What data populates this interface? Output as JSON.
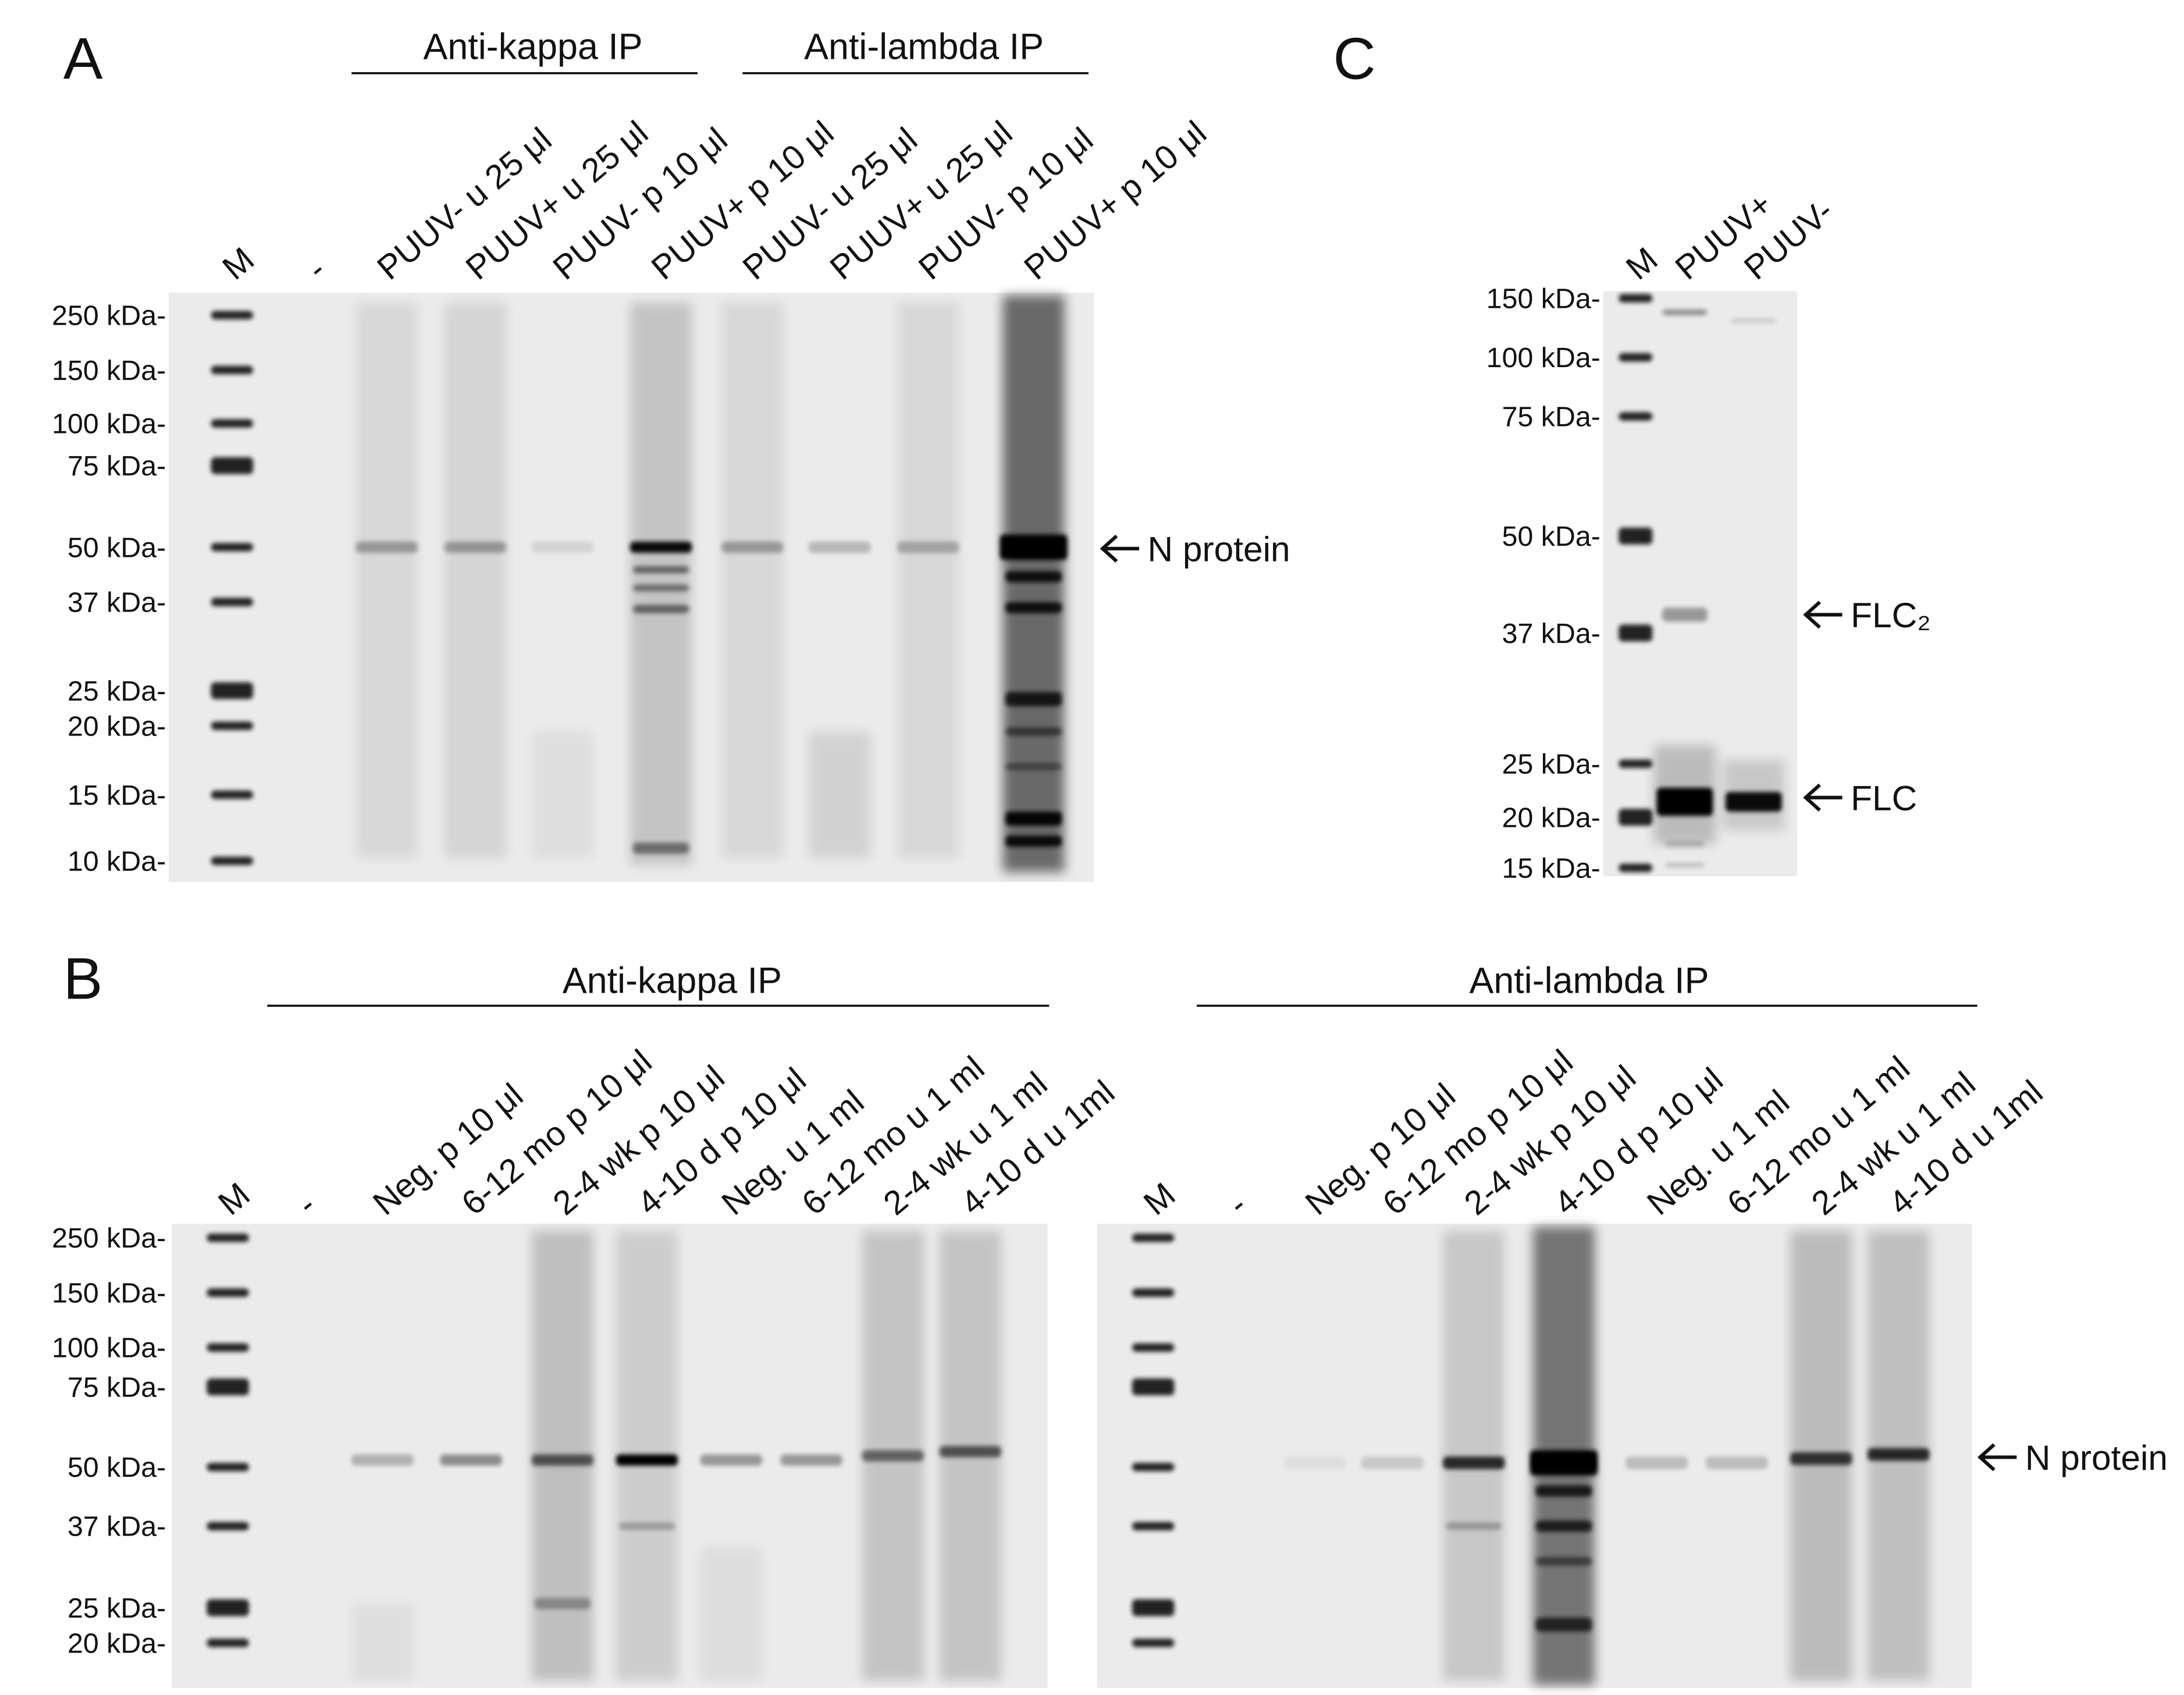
{
  "panels": [
    {
      "label": "A",
      "groups": [
        "Anti-kappa IP",
        "Anti-lambda IP"
      ],
      "lanes": [
        "M",
        "-",
        "PUUV- u 25 μl",
        "PUUV+ u 25 μl",
        "PUUV- p 10 μl",
        "PUUV+ p 10 μl",
        "PUUV- u 25 μl",
        "PUUV+ u 25 μl",
        "PUUV- p 10 μl",
        "PUUV+ p 10 μl"
      ],
      "markers": [
        "250 kDa-",
        "150 kDa-",
        "100 kDa-",
        "75 kDa-",
        "50 kDa-",
        "37 kDa-",
        "25 kDa-",
        "20 kDa-",
        "15 kDa-",
        "10 kDa-"
      ],
      "annotations": [
        "N protein"
      ]
    },
    {
      "label": "B",
      "gels": [
        {
          "group": "Anti-kappa IP",
          "lanes": [
            "M",
            "-",
            "Neg. p 10 μl",
            "6-12 mo p 10 μl",
            "2-4 wk p 10 μl",
            "4-10 d p 10 μl",
            "Neg. u 1 ml",
            "6-12 mo u 1 ml",
            "2-4 wk u 1 ml",
            "4-10 d u 1ml"
          ],
          "markers": [
            "250 kDa-",
            "150 kDa-",
            "100 kDa-",
            "75 kDa-",
            "50 kDa-",
            "37 kDa-",
            "25 kDa-",
            "20 kDa-"
          ]
        },
        {
          "group": "Anti-lambda IP",
          "lanes": [
            "M",
            "-",
            "Neg. p 10 μl",
            "6-12 mo p 10 μl",
            "2-4 wk p 10 μl",
            "4-10 d p 10 μl",
            "Neg. u 1 ml",
            "6-12 mo u 1 ml",
            "2-4 wk u 1 ml",
            "4-10 d u 1ml"
          ],
          "annotations": [
            "N protein"
          ]
        }
      ]
    },
    {
      "label": "C",
      "lanes": [
        "M",
        "PUUV+",
        "PUUV-"
      ],
      "markers": [
        "150 kDa-",
        "100 kDa-",
        "75 kDa-",
        "50 kDa-",
        "37 kDa-",
        "25 kDa-",
        "20 kDa-",
        "15 kDa-"
      ],
      "annotations": [
        "FLC₂",
        "FLC"
      ]
    }
  ]
}
